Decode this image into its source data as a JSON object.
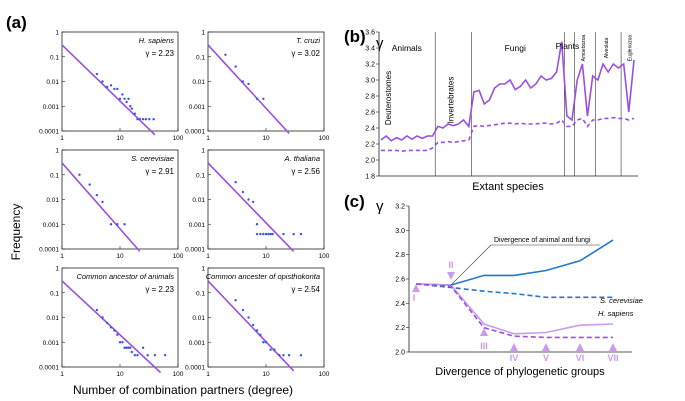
{
  "colors": {
    "purple": "#9a4fe0",
    "lilac": "#cc99ee",
    "blue": "#2277cc",
    "point": "#3355ee",
    "axis": "#222222"
  },
  "panel_a": {
    "label": "(a)",
    "ylabel": "Frequency",
    "xlabel": "Number of combination partners (degree)",
    "y_ticks": [
      "1",
      "0.1",
      "0.01",
      "0.001",
      "0.0001"
    ],
    "x_ticks": [
      "1",
      "10",
      "100"
    ],
    "cells": [
      {
        "species": "H. sapiens",
        "gamma_label": "γ = 2.23",
        "line": {
          "x": [
            1,
            40
          ],
          "y": [
            0.3,
            7e-05
          ]
        },
        "points": [
          [
            4,
            0.02
          ],
          [
            5,
            0.01
          ],
          [
            6,
            0.006
          ],
          [
            7,
            0.007
          ],
          [
            8,
            0.005
          ],
          [
            9,
            0.005
          ],
          [
            10,
            0.002
          ],
          [
            11,
            0.003
          ],
          [
            12,
            0.002
          ],
          [
            13,
            0.0015
          ],
          [
            14,
            0.002
          ],
          [
            15,
            0.001
          ],
          [
            16,
            0.0008
          ],
          [
            18,
            0.0005
          ],
          [
            20,
            0.0003
          ],
          [
            22,
            0.0003
          ],
          [
            25,
            0.0003
          ],
          [
            28,
            0.0003
          ],
          [
            32,
            0.0003
          ],
          [
            38,
            0.0003
          ]
        ]
      },
      {
        "species": "T. cruzi",
        "gamma_label": "γ = 3.02",
        "line": {
          "x": [
            1,
            25
          ],
          "y": [
            0.3,
            8e-05
          ]
        },
        "points": [
          [
            2,
            0.12
          ],
          [
            3,
            0.04
          ],
          [
            4,
            0.01
          ],
          [
            5,
            0.008
          ],
          [
            7,
            0.002
          ],
          [
            9,
            0.002
          ]
        ]
      },
      {
        "species": "S. cerevisiae",
        "gamma_label": "γ = 2.91",
        "line": {
          "x": [
            1,
            22
          ],
          "y": [
            0.3,
            8e-05
          ]
        },
        "points": [
          [
            2,
            0.1
          ],
          [
            3,
            0.04
          ],
          [
            4,
            0.015
          ],
          [
            5,
            0.008
          ],
          [
            7,
            0.001
          ],
          [
            9,
            0.001
          ],
          [
            12,
            0.001
          ]
        ]
      },
      {
        "species": "A. thaliana",
        "gamma_label": "γ = 2.56",
        "line": {
          "x": [
            1,
            30
          ],
          "y": [
            0.3,
            8e-05
          ]
        },
        "points": [
          [
            3,
            0.05
          ],
          [
            4,
            0.02
          ],
          [
            5,
            0.01
          ],
          [
            6,
            0.008
          ],
          [
            7,
            0.001
          ],
          [
            7,
            0.0004
          ],
          [
            8,
            0.0004
          ],
          [
            9,
            0.0004
          ],
          [
            10,
            0.0004
          ],
          [
            11,
            0.0004
          ],
          [
            12,
            0.0004
          ],
          [
            13,
            0.0004
          ],
          [
            20,
            0.0004
          ],
          [
            30,
            0.0004
          ],
          [
            40,
            0.0004
          ]
        ]
      },
      {
        "species": "Common ancestor of animals",
        "gamma_label": "γ = 2.23",
        "line": {
          "x": [
            1,
            50
          ],
          "y": [
            0.3,
            6e-05
          ]
        },
        "points": [
          [
            4,
            0.02
          ],
          [
            5,
            0.01
          ],
          [
            6,
            0.006
          ],
          [
            7,
            0.004
          ],
          [
            8,
            0.003
          ],
          [
            9,
            0.002
          ],
          [
            10,
            0.001
          ],
          [
            11,
            0.001
          ],
          [
            12,
            0.0006
          ],
          [
            13,
            0.0006
          ],
          [
            14,
            0.0006
          ],
          [
            15,
            0.0006
          ],
          [
            16,
            0.0004
          ],
          [
            18,
            0.0003
          ],
          [
            20,
            0.0003
          ],
          [
            25,
            0.0006
          ],
          [
            30,
            0.0003
          ],
          [
            40,
            0.0003
          ],
          [
            60,
            0.0003
          ]
        ]
      },
      {
        "species": "Common ancester of opisthokonta",
        "gamma_label": "γ = 2.54",
        "line": {
          "x": [
            1,
            30
          ],
          "y": [
            0.3,
            7e-05
          ]
        },
        "points": [
          [
            3,
            0.05
          ],
          [
            4,
            0.02
          ],
          [
            5,
            0.01
          ],
          [
            6,
            0.005
          ],
          [
            7,
            0.003
          ],
          [
            8,
            0.002
          ],
          [
            9,
            0.001
          ],
          [
            10,
            0.001
          ],
          [
            12,
            0.0005
          ],
          [
            14,
            0.0005
          ],
          [
            17,
            0.0003
          ],
          [
            20,
            0.0003
          ],
          [
            25,
            0.0003
          ],
          [
            40,
            0.0003
          ]
        ]
      }
    ]
  },
  "panel_b": {
    "label": "(b)",
    "ylabel": "γ",
    "xlabel": "Extant species",
    "ylim": [
      1.8,
      3.6
    ],
    "y_ticks": [
      "1.8",
      "2.0",
      "2.2",
      "2.4",
      "2.6",
      "2.8",
      "3.0",
      "3.2",
      "3.4",
      "3.6"
    ],
    "groups": [
      "Animals",
      "Fungi",
      "Plants"
    ],
    "subgroups": [
      "Deuterostomes",
      "Invertebrates"
    ],
    "small_groups": [
      "Amoebozoa",
      "Alveolata",
      "Euglenozoa"
    ],
    "solid": [
      2.25,
      2.3,
      2.24,
      2.28,
      2.25,
      2.3,
      2.26,
      2.3,
      2.27,
      2.3,
      2.3,
      2.42,
      2.4,
      2.45,
      2.43,
      2.45,
      2.5,
      2.42,
      2.85,
      2.87,
      2.7,
      2.75,
      2.9,
      2.95,
      2.95,
      3.0,
      2.88,
      2.92,
      3.0,
      2.9,
      2.95,
      3.05,
      3.0,
      3.02,
      3.1,
      3.48,
      2.55,
      2.5,
      3.0,
      3.2,
      2.55,
      3.05,
      3.0,
      3.2,
      3.1,
      3.2,
      3.15,
      3.2,
      2.6,
      3.25
    ],
    "dashed": [
      2.12,
      2.12,
      2.12,
      2.12,
      2.11,
      2.12,
      2.12,
      2.12,
      2.12,
      2.12,
      2.15,
      2.22,
      2.22,
      2.23,
      2.22,
      2.23,
      2.24,
      2.25,
      2.42,
      2.43,
      2.42,
      2.43,
      2.44,
      2.45,
      2.46,
      2.46,
      2.45,
      2.46,
      2.45,
      2.45,
      2.45,
      2.46,
      2.46,
      2.45,
      2.46,
      2.5,
      2.42,
      2.42,
      2.5,
      2.52,
      2.42,
      2.5,
      2.5,
      2.52,
      2.52,
      2.53,
      2.52,
      2.52,
      2.5,
      2.52
    ]
  },
  "panel_c": {
    "label": "(c)",
    "ylabel": "γ",
    "xlabel": "Divergence of phylogenetic groups",
    "ylim": [
      2.0,
      3.2
    ],
    "y_ticks": [
      "2.0",
      "2.2",
      "2.4",
      "2.6",
      "2.8",
      "3.0",
      "3.2"
    ],
    "stages": [
      "I",
      "II",
      "III",
      "IV",
      "V",
      "VI",
      "VII"
    ],
    "annotation": "Divergence of animal and fungi",
    "series_labels": [
      "S. cerevisiae",
      "H. sapiens"
    ],
    "sc_solid": [
      2.56,
      2.55,
      2.63,
      2.63,
      2.67,
      2.75,
      2.92
    ],
    "sc_dashed": [
      2.56,
      2.53,
      2.5,
      2.48,
      2.45,
      2.45,
      2.45
    ],
    "hs_solid": [
      2.56,
      2.55,
      2.23,
      2.15,
      2.16,
      2.22,
      2.23
    ],
    "hs_dashed": [
      2.56,
      2.54,
      2.2,
      2.13,
      2.12,
      2.12,
      2.12
    ]
  }
}
